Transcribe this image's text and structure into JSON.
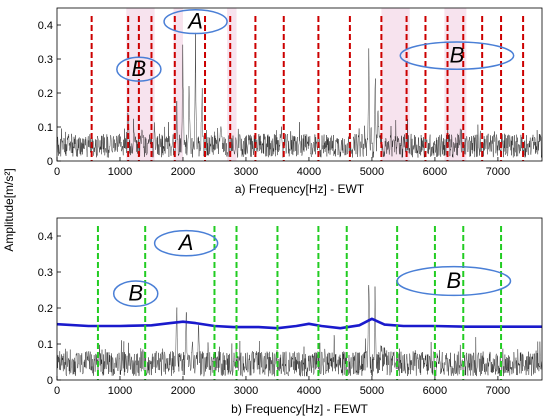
{
  "ylabel": "Amplitude[m/s²]",
  "chart_data": [
    {
      "type": "line",
      "panel": "a",
      "xlabel": "a) Frequency[Hz] - EWT",
      "ylabel": "Amplitude[m/s²]",
      "xlim": [
        0,
        7700
      ],
      "ylim": [
        0,
        0.45
      ],
      "xticks": [
        0,
        1000,
        2000,
        3000,
        4000,
        5000,
        6000,
        7000
      ],
      "yticks": [
        0,
        0.1,
        0.2,
        0.3,
        0.4
      ],
      "xtick_labels": [
        "0",
        "1000",
        "2000",
        "3000",
        "4000",
        "5000",
        "6000",
        "7000"
      ],
      "ytick_labels": [
        "0",
        "0.1",
        "0.2",
        "0.3",
        "0.4"
      ],
      "grid": false,
      "series": [
        {
          "kind": "spectrum",
          "color": "#000000",
          "baseline": 0.045,
          "noise": 0.035,
          "peaks": [
            {
              "x": 1130,
              "y": 0.23
            },
            {
              "x": 1220,
              "y": 0.16
            },
            {
              "x": 1350,
              "y": 0.14
            },
            {
              "x": 1550,
              "y": 0.15
            },
            {
              "x": 1900,
              "y": 0.22
            },
            {
              "x": 2000,
              "y": 0.42
            },
            {
              "x": 2100,
              "y": 0.28
            },
            {
              "x": 2200,
              "y": 0.38
            },
            {
              "x": 2300,
              "y": 0.27
            },
            {
              "x": 2600,
              "y": 0.16
            },
            {
              "x": 4950,
              "y": 0.37
            },
            {
              "x": 5050,
              "y": 0.33
            },
            {
              "x": 5100,
              "y": 0.22
            },
            {
              "x": 5300,
              "y": 0.13
            },
            {
              "x": 6200,
              "y": 0.12
            }
          ]
        }
      ],
      "boundaries": {
        "color": "#cc0000",
        "style": "dashed",
        "x": [
          550,
          1130,
          1300,
          1500,
          1870,
          2350,
          2750,
          3150,
          3600,
          4150,
          4650,
          5150,
          5550,
          5850,
          6200,
          6450,
          6750,
          7050,
          7400
        ]
      },
      "shaded_bands": {
        "color": "#f5dcea",
        "x_ranges": [
          [
            1100,
            1550
          ],
          [
            1850,
            2000
          ],
          [
            2700,
            2850
          ],
          [
            5150,
            5600
          ],
          [
            6150,
            6500
          ]
        ]
      },
      "annotations": [
        {
          "label": "A",
          "x": 2200,
          "y": 0.41,
          "rx": 500,
          "ry": 0.035
        },
        {
          "label": "B",
          "x": 1300,
          "y": 0.27,
          "rx": 350,
          "ry": 0.035
        },
        {
          "label": "B",
          "x": 6350,
          "y": 0.31,
          "rx": 900,
          "ry": 0.04
        }
      ]
    },
    {
      "type": "line",
      "panel": "b",
      "xlabel": "b) Frequency[Hz] - FEWT",
      "ylabel": "Amplitude[m/s²]",
      "xlim": [
        0,
        7700
      ],
      "ylim": [
        0,
        0.45
      ],
      "xticks": [
        0,
        1000,
        2000,
        3000,
        4000,
        5000,
        6000,
        7000
      ],
      "yticks": [
        0,
        0.1,
        0.2,
        0.3,
        0.4
      ],
      "xtick_labels": [
        "0",
        "1000",
        "2000",
        "3000",
        "4000",
        "5000",
        "6000",
        "7000"
      ],
      "ytick_labels": [
        "0",
        "0.1",
        "0.2",
        "0.3",
        "0.4"
      ],
      "grid": false,
      "series": [
        {
          "kind": "spectrum",
          "color": "#000000",
          "baseline": 0.045,
          "noise": 0.035,
          "peaks": [
            {
              "x": 1900,
              "y": 0.24
            },
            {
              "x": 2050,
              "y": 0.3
            },
            {
              "x": 2150,
              "y": 0.18
            },
            {
              "x": 2250,
              "y": 0.22
            },
            {
              "x": 2400,
              "y": 0.13
            },
            {
              "x": 4950,
              "y": 0.36
            },
            {
              "x": 5050,
              "y": 0.28
            },
            {
              "x": 5150,
              "y": 0.15
            }
          ]
        },
        {
          "kind": "envelope",
          "color": "#1a1acc",
          "x": [
            0,
            500,
            1000,
            1500,
            1800,
            2000,
            2200,
            2500,
            2800,
            3200,
            3500,
            3800,
            4000,
            4200,
            4500,
            4800,
            5000,
            5200,
            5500,
            6000,
            6500,
            7000,
            7700
          ],
          "y": [
            0.155,
            0.15,
            0.15,
            0.152,
            0.158,
            0.162,
            0.158,
            0.15,
            0.147,
            0.147,
            0.144,
            0.15,
            0.156,
            0.15,
            0.144,
            0.152,
            0.17,
            0.154,
            0.15,
            0.15,
            0.148,
            0.148,
            0.148
          ]
        }
      ],
      "boundaries": {
        "color": "#22cc22",
        "style": "dashed",
        "x": [
          650,
          1400,
          2500,
          2850,
          3500,
          4150,
          4600,
          5400,
          6000,
          6450,
          7050
        ]
      },
      "annotations": [
        {
          "label": "A",
          "x": 2050,
          "y": 0.38,
          "rx": 500,
          "ry": 0.035
        },
        {
          "label": "B",
          "x": 1250,
          "y": 0.24,
          "rx": 350,
          "ry": 0.035
        },
        {
          "label": "B",
          "x": 6300,
          "y": 0.275,
          "rx": 900,
          "ry": 0.04
        }
      ]
    }
  ]
}
